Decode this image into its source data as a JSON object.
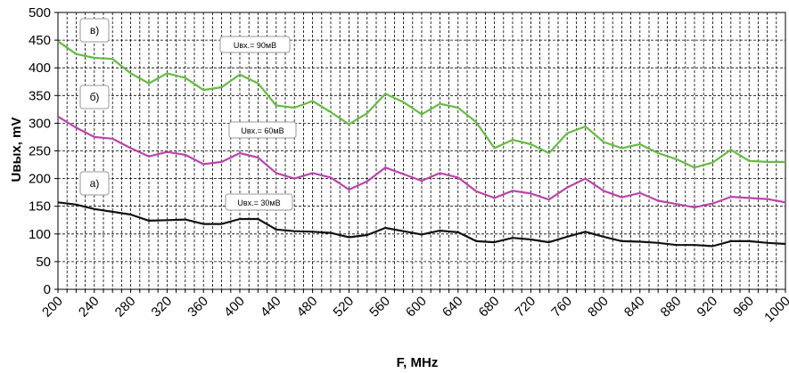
{
  "chart_data": {
    "type": "line",
    "xlabel": "F, MHz",
    "ylabel": "Uвых, mV",
    "xlim": [
      200,
      1000
    ],
    "ylim": [
      0,
      500
    ],
    "x_ticks": [
      200,
      240,
      280,
      320,
      360,
      400,
      440,
      480,
      520,
      560,
      600,
      640,
      680,
      720,
      760,
      800,
      840,
      880,
      920,
      960,
      1000
    ],
    "y_ticks": [
      0,
      50,
      100,
      150,
      200,
      250,
      300,
      350,
      400,
      450,
      500
    ],
    "x_minor_step": 10,
    "grid": true,
    "legend": "none",
    "x": [
      200,
      220,
      240,
      260,
      280,
      300,
      320,
      340,
      360,
      380,
      400,
      420,
      440,
      460,
      480,
      500,
      520,
      540,
      560,
      580,
      600,
      620,
      640,
      660,
      680,
      700,
      720,
      740,
      760,
      780,
      800,
      820,
      840,
      860,
      880,
      900,
      920,
      940,
      960,
      980,
      1000
    ],
    "series": [
      {
        "color": "#66bb44",
        "values": [
          448,
          425,
          418,
          416,
          390,
          372,
          390,
          382,
          360,
          365,
          388,
          372,
          332,
          328,
          340,
          320,
          298,
          318,
          353,
          338,
          316,
          335,
          328,
          302,
          255,
          270,
          262,
          246,
          282,
          294,
          266,
          255,
          262,
          246,
          235,
          220,
          229,
          252,
          232,
          230,
          230
        ]
      },
      {
        "color": "#bb44aa",
        "values": [
          312,
          292,
          275,
          272,
          255,
          240,
          248,
          243,
          226,
          230,
          246,
          238,
          210,
          200,
          210,
          202,
          180,
          195,
          220,
          208,
          196,
          210,
          202,
          177,
          165,
          178,
          173,
          162,
          184,
          200,
          178,
          166,
          174,
          160,
          154,
          148,
          155,
          167,
          165,
          163,
          157
        ]
      },
      {
        "color": "#111111",
        "values": [
          157,
          153,
          145,
          140,
          135,
          124,
          125,
          126,
          118,
          118,
          127,
          127,
          108,
          105,
          104,
          102,
          94,
          98,
          111,
          105,
          99,
          106,
          103,
          87,
          85,
          93,
          90,
          85,
          95,
          104,
          95,
          87,
          86,
          84,
          80,
          80,
          78,
          87,
          87,
          84,
          82
        ]
      }
    ],
    "annotations": [
      {
        "id": "tag_v",
        "text": "в)"
      },
      {
        "id": "tag_b",
        "text": "б)"
      },
      {
        "id": "tag_a",
        "text": "а)"
      },
      {
        "id": "note_90",
        "text": "Uвх.= 90мВ"
      },
      {
        "id": "note_60",
        "text": "Uвх.= 60мВ"
      },
      {
        "id": "note_30",
        "text": "Uвх.= 30мВ"
      }
    ]
  }
}
